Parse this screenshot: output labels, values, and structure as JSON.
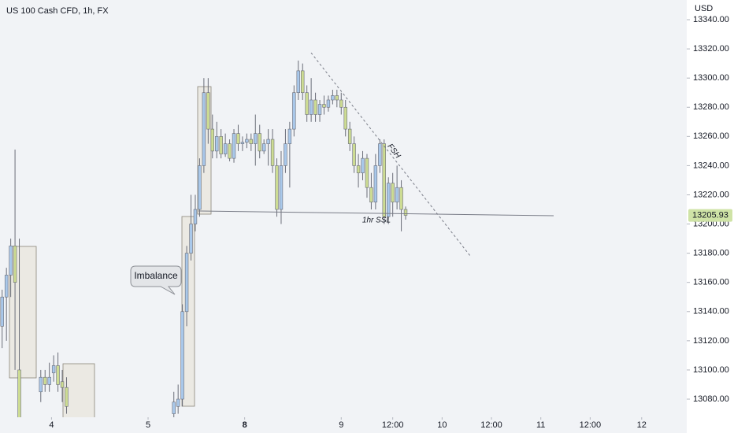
{
  "chart_data": {
    "type": "candlestick",
    "title": "US 100 Cash CFD, 1h, FX",
    "currency": "USD",
    "up_color": "#a9c8ea",
    "down_color": "#cddc93",
    "last_price": 13205.93,
    "last_price_color": "#cfe3a6",
    "annotations": [
      "Imbalance",
      "1hr SSL",
      "FSH"
    ],
    "xlim": [
      -0.5,
      159.5
    ],
    "xticks": [
      {
        "value": 11.5,
        "label": "4"
      },
      {
        "value": 34,
        "label": "5"
      },
      {
        "value": 56.5,
        "label": "8"
      },
      {
        "value": 79,
        "label": "9"
      },
      {
        "value": 91,
        "label": "12:00"
      },
      {
        "value": 102.5,
        "label": "10"
      },
      {
        "value": 114,
        "label": "12:00"
      },
      {
        "value": 125.5,
        "label": "11"
      },
      {
        "value": 137,
        "label": "12:00"
      },
      {
        "value": 149,
        "label": "12"
      }
    ],
    "ylim": [
      13067.6,
      13353.5
    ],
    "yticks": [
      {
        "value": 13080,
        "label": "13080.00"
      },
      {
        "value": 13100,
        "label": "13100.00"
      },
      {
        "value": 13120,
        "label": "13120.00"
      },
      {
        "value": 13140,
        "label": "13140.00"
      },
      {
        "value": 13160,
        "label": "13160.00"
      },
      {
        "value": 13180,
        "label": "13180.00"
      },
      {
        "value": 13200,
        "label": "13200.00"
      },
      {
        "value": 13220,
        "label": "13220.00"
      },
      {
        "value": 13240,
        "label": "13240.00"
      },
      {
        "value": 13260,
        "label": "13260.00"
      },
      {
        "value": 13280,
        "label": "13280.00"
      },
      {
        "value": 13300,
        "label": "13300.00"
      },
      {
        "value": 13320,
        "label": "13320.00"
      },
      {
        "value": 13340,
        "label": "13340.00"
      }
    ],
    "candles": {
      "x": [
        0,
        1,
        2,
        3,
        4,
        9,
        10,
        11,
        12,
        13,
        14,
        15,
        40,
        41,
        42,
        43,
        44,
        45,
        46,
        47,
        48,
        49,
        50,
        51,
        52,
        53,
        54,
        55,
        56,
        57,
        58,
        59,
        60,
        61,
        62,
        63,
        64,
        65,
        66,
        67,
        68,
        69,
        70,
        71,
        72,
        73,
        74,
        75,
        76,
        77,
        78,
        79,
        80,
        81,
        82,
        83,
        84,
        85,
        86,
        87,
        88,
        89,
        90,
        91,
        92,
        93,
        94
      ],
      "open": [
        13130,
        13150,
        13165,
        13185,
        13100,
        13085,
        13095,
        13090,
        13098,
        13103,
        13092,
        13088,
        13070,
        13075,
        13080,
        13140,
        13180,
        13200,
        13210,
        13240,
        13290,
        13265,
        13250,
        13260,
        13248,
        13255,
        13245,
        13262,
        13255,
        13256,
        13258,
        13255,
        13262,
        13250,
        13255,
        13258,
        13240,
        13210,
        13240,
        13255,
        13265,
        13290,
        13305,
        13290,
        13275,
        13285,
        13275,
        13282,
        13280,
        13285,
        13288,
        13285,
        13280,
        13265,
        13255,
        13240,
        13235,
        13245,
        13225,
        13215,
        13240,
        13255,
        13205,
        13228,
        13215,
        13225,
        13210
      ],
      "high": [
        13155,
        13170,
        13190,
        13251,
        13190,
        13100,
        13100,
        13105,
        13110,
        13112,
        13100,
        13095,
        13085,
        13090,
        13145,
        13185,
        13220,
        13220,
        13245,
        13300,
        13300,
        13275,
        13270,
        13265,
        13262,
        13258,
        13265,
        13268,
        13260,
        13262,
        13262,
        13275,
        13268,
        13258,
        13265,
        13265,
        13245,
        13250,
        13265,
        13270,
        13295,
        13312,
        13310,
        13295,
        13300,
        13290,
        13285,
        13288,
        13288,
        13292,
        13292,
        13290,
        13285,
        13270,
        13260,
        13248,
        13250,
        13248,
        13235,
        13248,
        13258,
        13258,
        13232,
        13235,
        13240,
        13230,
        13212
      ],
      "low": [
        13115,
        13120,
        13150,
        13100,
        13050,
        13078,
        13085,
        13085,
        13092,
        13085,
        13078,
        13070,
        13065,
        13070,
        13075,
        13130,
        13175,
        13195,
        13205,
        13235,
        13255,
        13245,
        13245,
        13245,
        13246,
        13243,
        13242,
        13250,
        13250,
        13252,
        13250,
        13240,
        13245,
        13248,
        13240,
        13235,
        13205,
        13200,
        13235,
        13225,
        13260,
        13285,
        13285,
        13270,
        13270,
        13270,
        13270,
        13275,
        13277,
        13282,
        13280,
        13275,
        13260,
        13250,
        13235,
        13225,
        13230,
        13218,
        13210,
        13210,
        13235,
        13200,
        13200,
        13205,
        13210,
        13195,
        13203
      ],
      "close": [
        13150,
        13165,
        13185,
        13160,
        13060,
        13095,
        13090,
        13095,
        13103,
        13090,
        13088,
        13075,
        13078,
        13080,
        13140,
        13180,
        13200,
        13210,
        13240,
        13290,
        13265,
        13250,
        13260,
        13248,
        13255,
        13245,
        13262,
        13255,
        13256,
        13258,
        13255,
        13262,
        13250,
        13255,
        13258,
        13240,
        13210,
        13240,
        13255,
        13265,
        13290,
        13305,
        13290,
        13275,
        13285,
        13275,
        13282,
        13280,
        13285,
        13288,
        13285,
        13280,
        13265,
        13255,
        13240,
        13235,
        13245,
        13225,
        13215,
        13240,
        13255,
        13205,
        13228,
        13215,
        13225,
        13210,
        13205.93
      ]
    }
  }
}
